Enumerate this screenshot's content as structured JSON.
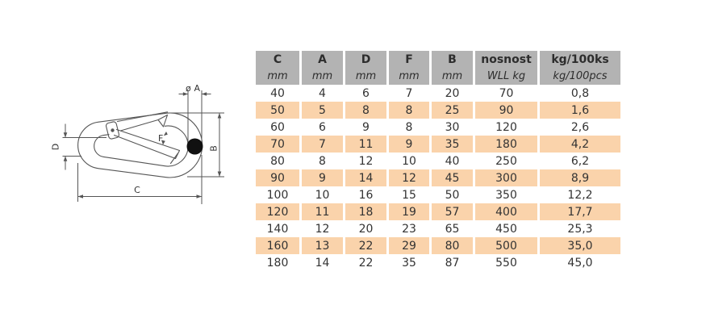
{
  "diagram": {
    "labels": {
      "dia": "ø",
      "a": "A",
      "b": "B",
      "c": "C",
      "d": "D",
      "f": "F"
    },
    "line_color": "#555555"
  },
  "table": {
    "header_bg": "#b3b3b3",
    "stripe_bg": "#fad3ab",
    "columns": [
      {
        "label": "C",
        "unit": "mm"
      },
      {
        "label": "A",
        "unit": "mm"
      },
      {
        "label": "D",
        "unit": "mm"
      },
      {
        "label": "F",
        "unit": "mm"
      },
      {
        "label": "B",
        "unit": "mm"
      },
      {
        "label": "nosnost",
        "unit": "WLL kg"
      },
      {
        "label": "kg/100ks",
        "unit": "kg/100pcs"
      }
    ],
    "rows": [
      [
        "40",
        "4",
        "6",
        "7",
        "20",
        "70",
        "0,8"
      ],
      [
        "50",
        "5",
        "8",
        "8",
        "25",
        "90",
        "1,6"
      ],
      [
        "60",
        "6",
        "9",
        "8",
        "30",
        "120",
        "2,6"
      ],
      [
        "70",
        "7",
        "11",
        "9",
        "35",
        "180",
        "4,2"
      ],
      [
        "80",
        "8",
        "12",
        "10",
        "40",
        "250",
        "6,2"
      ],
      [
        "90",
        "9",
        "14",
        "12",
        "45",
        "300",
        "8,9"
      ],
      [
        "100",
        "10",
        "16",
        "15",
        "50",
        "350",
        "12,2"
      ],
      [
        "120",
        "11",
        "18",
        "19",
        "57",
        "400",
        "17,7"
      ],
      [
        "140",
        "12",
        "20",
        "23",
        "65",
        "450",
        "25,3"
      ],
      [
        "160",
        "13",
        "22",
        "29",
        "80",
        "500",
        "35,0"
      ],
      [
        "180",
        "14",
        "22",
        "35",
        "87",
        "550",
        "45,0"
      ]
    ]
  }
}
